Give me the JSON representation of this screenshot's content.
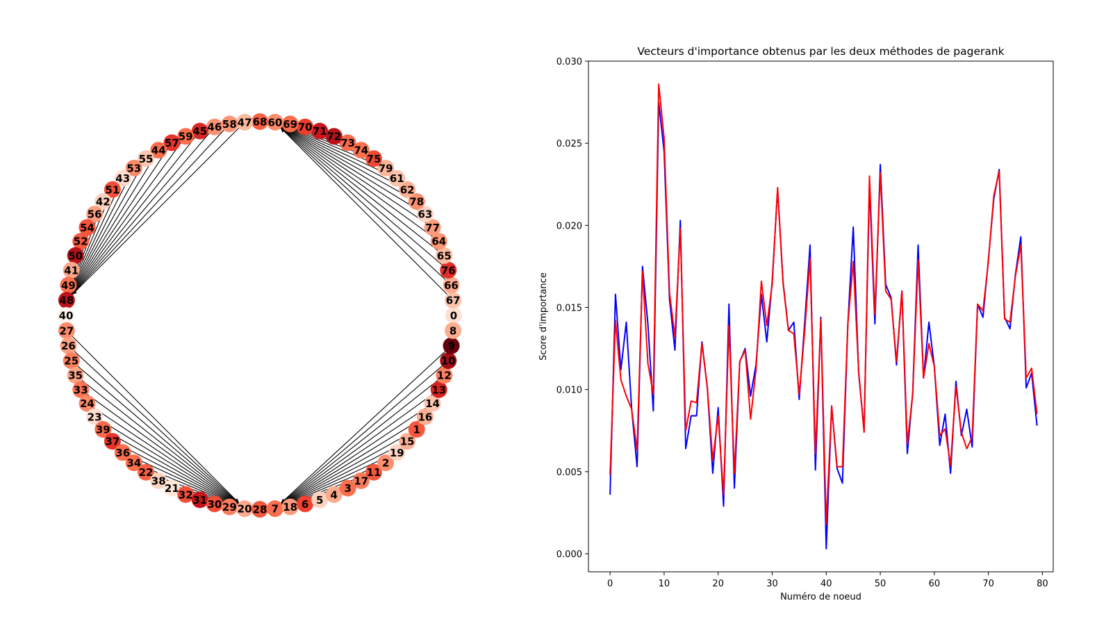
{
  "chart_data": [
    {
      "type": "network",
      "layout": "circular",
      "node_order": [
        0,
        67,
        66,
        76,
        65,
        64,
        77,
        63,
        78,
        62,
        61,
        79,
        75,
        74,
        73,
        72,
        71,
        70,
        69,
        60,
        68,
        47,
        58,
        46,
        45,
        59,
        57,
        44,
        55,
        53,
        43,
        51,
        42,
        56,
        54,
        52,
        50,
        41,
        49,
        48,
        40,
        27,
        26,
        25,
        35,
        33,
        24,
        23,
        39,
        37,
        36,
        34,
        22,
        38,
        21,
        32,
        31,
        30,
        29,
        20,
        28,
        7,
        18,
        6,
        5,
        4,
        3,
        17,
        11,
        2,
        19,
        15,
        1,
        16,
        14,
        13,
        12,
        10,
        9,
        8
      ],
      "node_importance": {
        "0": 0.0036,
        "1": 0.0158,
        "2": 0.0112,
        "3": 0.0141,
        "4": 0.0088,
        "5": 0.0053,
        "6": 0.0175,
        "7": 0.014,
        "8": 0.0087,
        "9": 0.0286,
        "10": 0.0253,
        "11": 0.0159,
        "12": 0.0124,
        "13": 0.0203,
        "14": 0.0064,
        "15": 0.0084,
        "16": 0.0084,
        "17": 0.0129,
        "18": 0.0101,
        "19": 0.0049,
        "20": 0.0089,
        "21": 0.0029,
        "22": 0.0152,
        "23": 0.004,
        "24": 0.0117,
        "25": 0.0125,
        "26": 0.0096,
        "27": 0.0115,
        "28": 0.0158,
        "29": 0.0129,
        "30": 0.0166,
        "31": 0.0222,
        "32": 0.0166,
        "33": 0.0136,
        "34": 0.0141,
        "35": 0.0094,
        "36": 0.014,
        "37": 0.0188,
        "38": 0.0051,
        "39": 0.0144,
        "40": 0.0003,
        "41": 0.009,
        "42": 0.0052,
        "43": 0.0043,
        "44": 0.014,
        "45": 0.0199,
        "46": 0.011,
        "47": 0.0075,
        "48": 0.0229,
        "49": 0.014,
        "50": 0.0237,
        "51": 0.0164,
        "52": 0.0156,
        "53": 0.0115,
        "54": 0.016,
        "55": 0.0061,
        "56": 0.0098,
        "57": 0.0188,
        "58": 0.0107,
        "59": 0.0141,
        "60": 0.0114,
        "61": 0.0066,
        "62": 0.0085,
        "63": 0.0049,
        "64": 0.0105,
        "65": 0.0072,
        "66": 0.0088,
        "67": 0.0065,
        "68": 0.0152,
        "69": 0.0144,
        "70": 0.0179,
        "71": 0.0216,
        "72": 0.0234,
        "73": 0.0144,
        "74": 0.0137,
        "75": 0.017,
        "76": 0.0193,
        "77": 0.0101,
        "78": 0.011,
        "79": 0.0078
      },
      "hubs": [
        20,
        7,
        60,
        48
      ],
      "hub_sources": {
        "20": [
          29,
          30,
          31,
          32,
          21,
          38,
          22,
          34,
          36,
          37,
          39,
          23,
          24,
          33,
          35,
          25,
          26,
          27
        ],
        "7": [
          18,
          6,
          5,
          4,
          3,
          17,
          11,
          2,
          19,
          15,
          1,
          16,
          14,
          13,
          12,
          10,
          9
        ],
        "60": [
          69,
          70,
          71,
          72,
          73,
          74,
          75,
          79,
          61,
          62,
          78,
          63,
          77,
          64,
          65,
          76,
          66,
          67
        ],
        "48": [
          49,
          41,
          50,
          52,
          54,
          56,
          42,
          51,
          43,
          53,
          55,
          44,
          57,
          59,
          45,
          46,
          58,
          47
        ]
      },
      "color_scale": "Reds"
    },
    {
      "type": "line",
      "title": "Vecteurs d'importance obtenus par les deux méthodes de pagerank",
      "xlabel": "Numéro de noeud",
      "ylabel": "Score d'importance",
      "xlim": [
        -4,
        82
      ],
      "ylim": [
        -0.0011,
        0.03
      ],
      "xticks": [
        0,
        10,
        20,
        30,
        40,
        50,
        60,
        70,
        80
      ],
      "yticks": [
        0.0,
        0.005,
        0.01,
        0.015,
        0.02,
        0.025,
        0.03
      ],
      "ytick_labels": [
        "0.000",
        "0.005",
        "0.010",
        "0.015",
        "0.020",
        "0.025",
        "0.030"
      ],
      "x": [
        0,
        1,
        2,
        3,
        4,
        5,
        6,
        7,
        8,
        9,
        10,
        11,
        12,
        13,
        14,
        15,
        16,
        17,
        18,
        19,
        20,
        21,
        22,
        23,
        24,
        25,
        26,
        27,
        28,
        29,
        30,
        31,
        32,
        33,
        34,
        35,
        36,
        37,
        38,
        39,
        40,
        41,
        42,
        43,
        44,
        45,
        46,
        47,
        48,
        49,
        50,
        51,
        52,
        53,
        54,
        55,
        56,
        57,
        58,
        59,
        60,
        61,
        62,
        63,
        64,
        65,
        66,
        67,
        68,
        69,
        70,
        71,
        72,
        73,
        74,
        75,
        76,
        77,
        78,
        79
      ],
      "series": [
        {
          "color": "#0000ff",
          "values": [
            0.0036,
            0.0158,
            0.0112,
            0.0141,
            0.0088,
            0.0053,
            0.0175,
            0.014,
            0.0087,
            0.0275,
            0.0245,
            0.0155,
            0.0124,
            0.0203,
            0.0064,
            0.0084,
            0.0084,
            0.0129,
            0.0101,
            0.0049,
            0.0089,
            0.0029,
            0.0152,
            0.004,
            0.0117,
            0.0125,
            0.0096,
            0.0115,
            0.0158,
            0.0129,
            0.0166,
            0.0222,
            0.0166,
            0.0136,
            0.0141,
            0.0094,
            0.014,
            0.0188,
            0.0051,
            0.0144,
            0.0003,
            0.009,
            0.0052,
            0.0043,
            0.014,
            0.0199,
            0.011,
            0.0075,
            0.0225,
            0.014,
            0.0237,
            0.0164,
            0.0156,
            0.0115,
            0.016,
            0.0061,
            0.0098,
            0.0188,
            0.0107,
            0.0141,
            0.0114,
            0.0066,
            0.0085,
            0.0049,
            0.0105,
            0.0072,
            0.0088,
            0.0065,
            0.0152,
            0.0144,
            0.0179,
            0.0216,
            0.0234,
            0.0144,
            0.0137,
            0.017,
            0.0193,
            0.0101,
            0.011,
            0.0078
          ]
        },
        {
          "color": "#ff0000",
          "values": [
            0.0048,
            0.0142,
            0.0106,
            0.0096,
            0.0088,
            0.0063,
            0.0172,
            0.0116,
            0.0097,
            0.0286,
            0.0253,
            0.0159,
            0.0132,
            0.0198,
            0.0075,
            0.0093,
            0.0092,
            0.0128,
            0.0101,
            0.0057,
            0.0084,
            0.0036,
            0.0139,
            0.0049,
            0.0117,
            0.0124,
            0.0082,
            0.0112,
            0.0166,
            0.0139,
            0.0164,
            0.0223,
            0.0165,
            0.0136,
            0.0134,
            0.0097,
            0.0135,
            0.018,
            0.0061,
            0.0143,
            0.0018,
            0.009,
            0.0053,
            0.0053,
            0.014,
            0.0178,
            0.0111,
            0.0074,
            0.023,
            0.0146,
            0.0232,
            0.016,
            0.0155,
            0.0117,
            0.016,
            0.0067,
            0.0097,
            0.0179,
            0.0107,
            0.0128,
            0.0114,
            0.0072,
            0.0076,
            0.0054,
            0.0102,
            0.0074,
            0.0064,
            0.0071,
            0.0152,
            0.0148,
            0.0178,
            0.0218,
            0.0233,
            0.0143,
            0.0141,
            0.0169,
            0.0188,
            0.0107,
            0.0113,
            0.0085
          ]
        }
      ]
    }
  ]
}
